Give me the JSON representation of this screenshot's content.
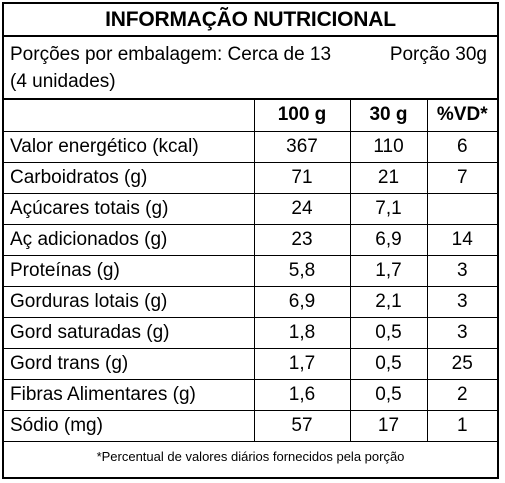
{
  "title": "INFORMAÇÃO NUTRICIONAL",
  "portion": {
    "per_package": "Porções por embalagem: Cerca de 13",
    "serving": "Porção 30g",
    "units": "(4 unidades)"
  },
  "headers": [
    "",
    "100 g",
    "30 g",
    "%VD*"
  ],
  "rows": [
    {
      "name": "Valor energético (kcal)",
      "per100": "367",
      "per30": "110",
      "vd": "6"
    },
    {
      "name": "Carboidratos (g)",
      "per100": "71",
      "per30": "21",
      "vd": "7"
    },
    {
      "name": "Açúcares totais (g)",
      "per100": "24",
      "per30": "7,1",
      "vd": ""
    },
    {
      "name": "Aç adicionados (g)",
      "per100": "23",
      "per30": "6,9",
      "vd": "14"
    },
    {
      "name": "Proteínas (g)",
      "per100": "5,8",
      "per30": "1,7",
      "vd": "3"
    },
    {
      "name": "Gorduras lotais (g)",
      "per100": "6,9",
      "per30": "2,1",
      "vd": "3"
    },
    {
      "name": "Gord saturadas (g)",
      "per100": "1,8",
      "per30": "0,5",
      "vd": "3"
    },
    {
      "name": "Gord trans (g)",
      "per100": "1,7",
      "per30": "0,5",
      "vd": "25"
    },
    {
      "name": "Fibras Alimentares (g)",
      "per100": "1,6",
      "per30": "0,5",
      "vd": "2"
    },
    {
      "name": "Sódio (mg)",
      "per100": "57",
      "per30": "17",
      "vd": "1"
    }
  ],
  "footnote": "*Percentual de valores diários fornecidos pela porção"
}
